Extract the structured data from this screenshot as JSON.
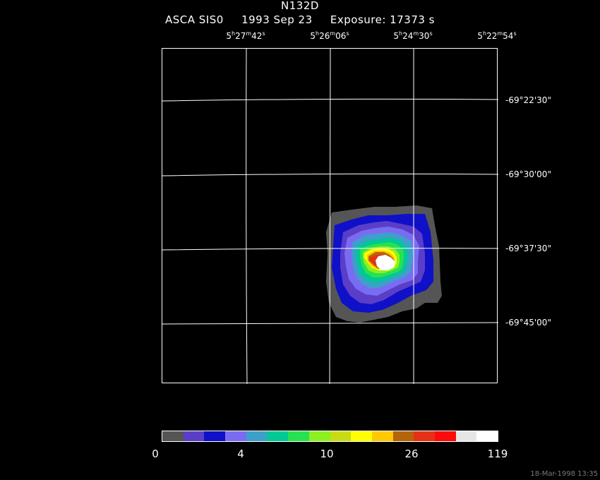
{
  "header": {
    "title": "N132D",
    "instrument": "ASCA SIS0",
    "date": "1993 Sep 23",
    "exposure": "Exposure: 17373 s"
  },
  "ra_ticks": [
    {
      "h": "5",
      "m": "27",
      "s": "42"
    },
    {
      "h": "5",
      "m": "26",
      "s": "06"
    },
    {
      "h": "5",
      "m": "24",
      "s": "30"
    },
    {
      "h": "5",
      "m": "22",
      "s": "54"
    }
  ],
  "dec_ticks": [
    "-69°22'30\"",
    "-69°30'00\"",
    "-69°37'30\"",
    "-69°45'00\""
  ],
  "colorbar": {
    "colors": [
      "#555555",
      "#5a3ec8",
      "#1010c8",
      "#7a6cf2",
      "#3ca0c8",
      "#00c896",
      "#28e150",
      "#8cf01e",
      "#c8dc14",
      "#ffff00",
      "#ffc800",
      "#b4640a",
      "#e63214",
      "#ff0a0a",
      "#e6e6e6",
      "#ffffff"
    ],
    "labels": [
      "0",
      "4",
      "10",
      "26",
      "119"
    ]
  },
  "image": {
    "source_level": "peak",
    "contour_colors": [
      "#555555",
      "#1010c8",
      "#5a3ec8",
      "#7a6cf2",
      "#3ca0c8",
      "#00c896",
      "#28e150",
      "#8cf01e",
      "#ffff00",
      "#ffc800",
      "#b4640a",
      "#e63214",
      "#ffffff"
    ]
  },
  "footer": {
    "timestamp": "18-Mar-1998 13:35"
  }
}
